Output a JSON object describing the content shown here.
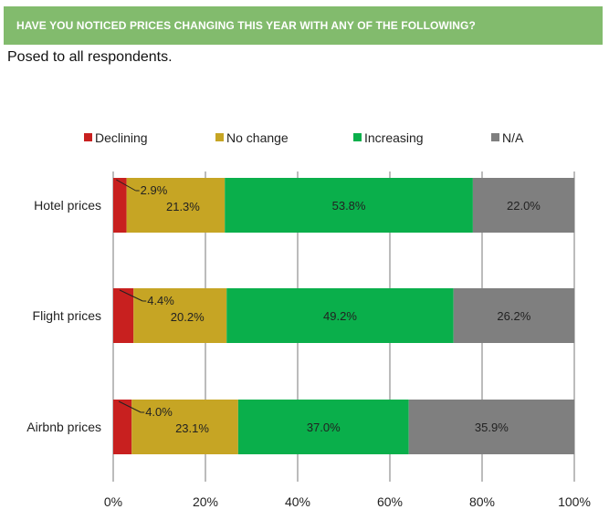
{
  "header": {
    "question": "HAVE YOU NOTICED PRICES CHANGING THIS YEAR WITH ANY OF THE FOLLOWING?",
    "subtitle": "Posed to all respondents."
  },
  "chart_data": {
    "type": "bar",
    "orientation": "horizontal",
    "stacked": true,
    "categories": [
      "Hotel prices",
      "Flight prices",
      "Airbnb prices"
    ],
    "series": [
      {
        "name": "Declining",
        "color": "#c8201f",
        "values": [
          2.9,
          4.4,
          4.0
        ],
        "labels": [
          "2.9%",
          "4.4%",
          "4.0%"
        ]
      },
      {
        "name": "No change",
        "color": "#c6a524",
        "values": [
          21.3,
          20.2,
          23.1
        ],
        "labels": [
          "21.3%",
          "20.2%",
          "23.1%"
        ]
      },
      {
        "name": "Increasing",
        "color": "#0aaf4b",
        "values": [
          53.8,
          49.2,
          37.0
        ],
        "labels": [
          "53.8%",
          "49.2%",
          "37.0%"
        ]
      },
      {
        "name": "N/A",
        "color": "#7f7f7f",
        "values": [
          22.0,
          26.2,
          35.9
        ],
        "labels": [
          "22.0%",
          "26.2%",
          "35.9%"
        ]
      }
    ],
    "xlim": [
      0,
      100
    ],
    "xticks": [
      0,
      20,
      40,
      60,
      80,
      100
    ],
    "xtick_labels": [
      "0%",
      "20%",
      "40%",
      "60%",
      "80%",
      "100%"
    ],
    "grid": true,
    "legend_position": "top"
  }
}
